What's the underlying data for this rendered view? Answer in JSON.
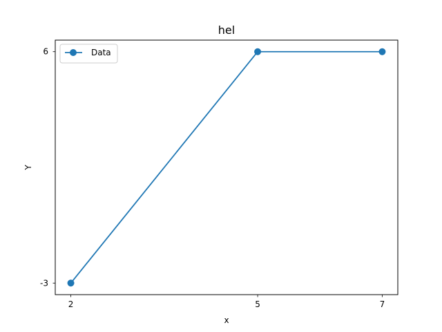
{
  "chart_data": {
    "type": "line",
    "title": "hel",
    "xlabel": "x",
    "ylabel": "Y",
    "xlim": [
      1.75,
      7.25
    ],
    "ylim": [
      -3.45,
      6.45
    ],
    "x_ticks": [
      2,
      5,
      7
    ],
    "x_tick_labels": [
      "2",
      "5",
      "7"
    ],
    "y_ticks": [
      -3,
      6
    ],
    "y_tick_labels": [
      "-3",
      "6"
    ],
    "grid": false,
    "legend_position": "top-left",
    "series": [
      {
        "name": "Data",
        "color": "#1f77b4",
        "marker": "circle",
        "x": [
          2,
          5,
          7
        ],
        "y": [
          -3,
          6,
          6
        ]
      }
    ]
  }
}
